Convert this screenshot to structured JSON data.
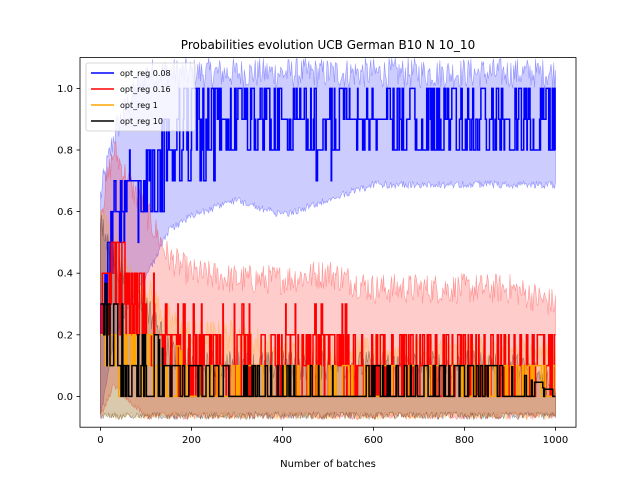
{
  "chart_data": {
    "type": "line",
    "title": "Probabilities evolution UCB German B10 N 10_10",
    "xlabel": "Number of batches",
    "ylabel": "",
    "xlim": [
      -45,
      1045
    ],
    "ylim": [
      -0.1,
      1.1
    ],
    "x_ticks": [
      0,
      200,
      400,
      600,
      800,
      1000
    ],
    "x_tick_labels": [
      "0",
      "200",
      "400",
      "600",
      "800",
      "1000"
    ],
    "y_ticks": [
      0.0,
      0.2,
      0.4,
      0.6,
      0.8,
      1.0
    ],
    "y_tick_labels": [
      "0.0",
      "0.2",
      "0.4",
      "0.6",
      "0.8",
      "1.0"
    ],
    "grid": false,
    "legend_position": "top-left",
    "n_points": 1000,
    "series": [
      {
        "name": "opt_reg 0.08",
        "color": "#0000ff",
        "band_alpha": 0.2,
        "x": [
          0,
          30,
          60,
          100,
          150,
          200,
          300,
          400,
          500,
          600,
          700,
          800,
          900,
          1000
        ],
        "values": [
          0.25,
          0.55,
          0.65,
          0.7,
          0.8,
          0.85,
          0.88,
          0.87,
          0.88,
          0.9,
          0.9,
          0.9,
          0.9,
          0.9
        ],
        "lower": [
          -0.05,
          0.2,
          0.3,
          0.4,
          0.55,
          0.6,
          0.65,
          0.6,
          0.65,
          0.7,
          0.7,
          0.7,
          0.7,
          0.7
        ],
        "upper": [
          0.65,
          0.85,
          0.95,
          1.05,
          1.05,
          1.05,
          1.05,
          1.05,
          1.05,
          1.05,
          1.05,
          1.05,
          1.05,
          1.05
        ],
        "trace_min": [
          0.0,
          0.3,
          0.4,
          0.5,
          0.6,
          0.7,
          0.7,
          0.7,
          0.7,
          0.7,
          0.7,
          0.7,
          0.7,
          0.8
        ],
        "trace_max": [
          0.4,
          0.8,
          0.9,
          1.0,
          1.0,
          1.0,
          1.0,
          1.0,
          1.0,
          1.0,
          1.0,
          1.0,
          1.0,
          1.0
        ],
        "step": 0.1,
        "switch_prob": 0.45
      },
      {
        "name": "opt_reg 0.16",
        "color": "#ff0000",
        "band_alpha": 0.2,
        "x": [
          0,
          30,
          60,
          100,
          150,
          200,
          300,
          400,
          500,
          600,
          700,
          800,
          900,
          1000
        ],
        "values": [
          0.25,
          0.4,
          0.3,
          0.25,
          0.15,
          0.12,
          0.12,
          0.12,
          0.12,
          0.1,
          0.1,
          0.1,
          0.1,
          0.1
        ],
        "lower": [
          -0.05,
          0.05,
          0.0,
          -0.05,
          -0.05,
          -0.05,
          -0.05,
          -0.05,
          -0.05,
          -0.05,
          -0.05,
          -0.05,
          -0.05,
          -0.05
        ],
        "upper": [
          0.6,
          0.8,
          0.7,
          0.6,
          0.45,
          0.4,
          0.38,
          0.38,
          0.4,
          0.35,
          0.35,
          0.35,
          0.35,
          0.3
        ],
        "trace_min": [
          0.1,
          0.0,
          0.0,
          0.0,
          0.0,
          0.0,
          0.0,
          0.0,
          0.0,
          0.0,
          0.0,
          0.0,
          0.0,
          0.0
        ],
        "trace_max": [
          0.5,
          0.8,
          0.7,
          0.6,
          0.3,
          0.3,
          0.3,
          0.3,
          0.3,
          0.3,
          0.2,
          0.2,
          0.2,
          0.2
        ],
        "step": 0.1,
        "switch_prob": 0.45
      },
      {
        "name": "opt_reg 1",
        "color": "#ffa500",
        "band_alpha": 0.2,
        "x": [
          0,
          30,
          60,
          100,
          150,
          200,
          300,
          400,
          500,
          600,
          700,
          800,
          900,
          1000
        ],
        "values": [
          0.2,
          0.15,
          0.12,
          0.1,
          0.05,
          0.03,
          0.02,
          0.02,
          0.02,
          0.02,
          0.02,
          0.02,
          0.02,
          0.02
        ],
        "lower": [
          -0.05,
          -0.05,
          -0.05,
          -0.05,
          -0.05,
          -0.05,
          -0.05,
          -0.05,
          -0.05,
          -0.05,
          -0.05,
          -0.05,
          -0.05,
          -0.05
        ],
        "upper": [
          0.6,
          0.5,
          0.4,
          0.35,
          0.25,
          0.2,
          0.2,
          0.15,
          0.15,
          0.15,
          0.15,
          0.15,
          0.15,
          0.15
        ],
        "trace_min": [
          0.0,
          0.0,
          0.0,
          0.0,
          0.0,
          0.0,
          0.0,
          0.0,
          0.0,
          0.0,
          0.0,
          0.0,
          0.0,
          0.0
        ],
        "trace_max": [
          0.5,
          0.6,
          0.4,
          0.3,
          0.2,
          0.1,
          0.1,
          0.1,
          0.1,
          0.1,
          0.1,
          0.1,
          0.1,
          0.1
        ],
        "step": 0.1,
        "switch_prob": 0.25
      },
      {
        "name": "opt_reg 10",
        "color": "#000000",
        "band_alpha": 0.15,
        "x": [
          0,
          30,
          60,
          100,
          150,
          200,
          300,
          400,
          500,
          600,
          700,
          800,
          900,
          1000
        ],
        "values": [
          0.25,
          0.15,
          0.1,
          0.08,
          0.02,
          0.01,
          0.01,
          0.01,
          0.01,
          0.01,
          0.01,
          0.01,
          0.01,
          0.0
        ],
        "lower": [
          -0.05,
          -0.05,
          -0.05,
          -0.05,
          -0.05,
          -0.05,
          -0.05,
          -0.05,
          -0.05,
          -0.05,
          -0.05,
          -0.05,
          -0.05,
          -0.05
        ],
        "upper": [
          0.55,
          0.45,
          0.35,
          0.3,
          0.15,
          0.1,
          0.1,
          0.1,
          0.1,
          0.1,
          0.1,
          0.1,
          0.1,
          0.05
        ],
        "trace_min": [
          0.1,
          0.0,
          0.0,
          0.0,
          0.0,
          0.0,
          0.0,
          0.0,
          0.0,
          0.0,
          0.0,
          0.0,
          0.0,
          0.0
        ],
        "trace_max": [
          0.4,
          0.3,
          0.3,
          0.3,
          0.1,
          0.1,
          0.1,
          0.1,
          0.1,
          0.1,
          0.1,
          0.1,
          0.1,
          0.0
        ],
        "step": 0.1,
        "switch_prob": 0.3
      }
    ]
  }
}
